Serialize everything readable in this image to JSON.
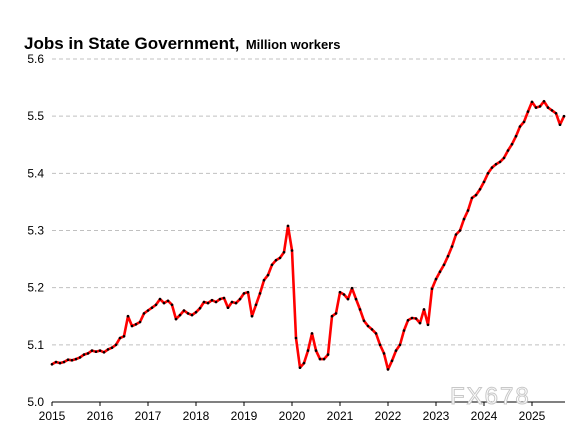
{
  "chart_data": {
    "type": "line",
    "title": "Jobs in State Government,",
    "subtitle": "Million workers",
    "xlabel": "",
    "ylabel": "",
    "ylim": [
      5.0,
      5.6
    ],
    "yticks": [
      "5.0",
      "5.1",
      "5.2",
      "5.3",
      "5.4",
      "5.5",
      "5.6"
    ],
    "xlim": [
      2015.0,
      2025.7
    ],
    "xticks": [
      "2015",
      "2016",
      "2017",
      "2018",
      "2019",
      "2020",
      "2021",
      "2022",
      "2023",
      "2024",
      "2025"
    ],
    "grid": "horizontal dashed",
    "legend": "none",
    "colors": {
      "line": "#ff0000",
      "markers": "#000000",
      "grid": "#c0c0c0",
      "axis": "#000000"
    },
    "series": [
      {
        "x": [
          2015.0,
          2015.083,
          2015.167,
          2015.25,
          2015.333,
          2015.417,
          2015.5,
          2015.583,
          2015.667,
          2015.75,
          2015.833,
          2015.917,
          2016.0,
          2016.083,
          2016.167,
          2016.25,
          2016.333,
          2016.417,
          2016.5,
          2016.583,
          2016.667,
          2016.75,
          2016.833,
          2016.917,
          2017.0,
          2017.083,
          2017.167,
          2017.25,
          2017.333,
          2017.417,
          2017.5,
          2017.583,
          2017.667,
          2017.75,
          2017.833,
          2017.917,
          2018.0,
          2018.083,
          2018.167,
          2018.25,
          2018.333,
          2018.417,
          2018.5,
          2018.583,
          2018.667,
          2018.75,
          2018.833,
          2018.917,
          2019.0,
          2019.083,
          2019.167,
          2019.25,
          2019.333,
          2019.417,
          2019.5,
          2019.583,
          2019.667,
          2019.75,
          2019.833,
          2019.917,
          2020.0,
          2020.083,
          2020.167,
          2020.25,
          2020.333,
          2020.417,
          2020.5,
          2020.583,
          2020.667,
          2020.75,
          2020.833,
          2020.917,
          2021.0,
          2021.083,
          2021.167,
          2021.25,
          2021.333,
          2021.417,
          2021.5,
          2021.583,
          2021.667,
          2021.75,
          2021.833,
          2021.917,
          2022.0,
          2022.083,
          2022.167,
          2022.25,
          2022.333,
          2022.417,
          2022.5,
          2022.583,
          2022.667,
          2022.75,
          2022.833,
          2022.917,
          2023.0,
          2023.083,
          2023.167,
          2023.25,
          2023.333,
          2023.417,
          2023.5,
          2023.583,
          2023.667,
          2023.75,
          2023.833,
          2023.917,
          2024.0,
          2024.083,
          2024.167,
          2024.25,
          2024.333,
          2024.417,
          2024.5,
          2024.583,
          2024.667,
          2024.75,
          2024.833,
          2024.917,
          2025.0,
          2025.083,
          2025.167,
          2025.25,
          2025.333,
          2025.417,
          2025.5,
          2025.583,
          2025.667
        ],
        "values": [
          5.066,
          5.07,
          5.068,
          5.07,
          5.074,
          5.073,
          5.075,
          5.078,
          5.083,
          5.085,
          5.09,
          5.088,
          5.09,
          5.087,
          5.092,
          5.095,
          5.1,
          5.112,
          5.115,
          5.15,
          5.133,
          5.136,
          5.14,
          5.155,
          5.16,
          5.165,
          5.17,
          5.18,
          5.173,
          5.177,
          5.17,
          5.145,
          5.152,
          5.16,
          5.155,
          5.152,
          5.157,
          5.164,
          5.175,
          5.173,
          5.178,
          5.175,
          5.18,
          5.182,
          5.165,
          5.175,
          5.173,
          5.18,
          5.19,
          5.192,
          5.15,
          5.17,
          5.19,
          5.213,
          5.222,
          5.24,
          5.248,
          5.252,
          5.262,
          5.308,
          5.265,
          5.112,
          5.06,
          5.068,
          5.09,
          5.12,
          5.09,
          5.075,
          5.075,
          5.083,
          5.15,
          5.155,
          5.192,
          5.188,
          5.18,
          5.199,
          5.18,
          5.162,
          5.142,
          5.133,
          5.127,
          5.12,
          5.1,
          5.085,
          5.057,
          5.072,
          5.09,
          5.1,
          5.125,
          5.143,
          5.147,
          5.146,
          5.138,
          5.162,
          5.135,
          5.198,
          5.215,
          5.228,
          5.24,
          5.255,
          5.272,
          5.293,
          5.3,
          5.32,
          5.335,
          5.357,
          5.362,
          5.372,
          5.385,
          5.4,
          5.41,
          5.416,
          5.42,
          5.427,
          5.44,
          5.451,
          5.465,
          5.482,
          5.49,
          5.508,
          5.525,
          5.515,
          5.517,
          5.526,
          5.515,
          5.51,
          5.505,
          5.485,
          5.5
        ]
      }
    ]
  },
  "watermark": "FX678"
}
